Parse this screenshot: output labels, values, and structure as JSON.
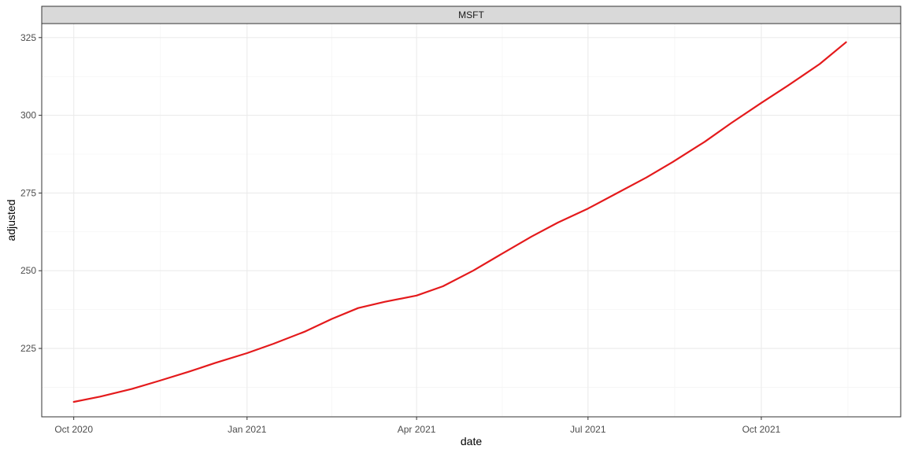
{
  "chart_data": {
    "type": "line",
    "facet_label": "MSFT",
    "xlabel": "date",
    "ylabel": "adjusted",
    "x_ticks": [
      "2020-10-01",
      "2021-01-01",
      "2021-04-01",
      "2021-07-01",
      "2021-10-01"
    ],
    "x_tick_labels": [
      "Oct 2020",
      "Jan 2021",
      "Apr 2021",
      "Jul 2021",
      "Oct 2021"
    ],
    "xlim": [
      "2020-09-14",
      "2021-12-14"
    ],
    "y_ticks": [
      225,
      250,
      275,
      300,
      325
    ],
    "y_tick_labels": [
      "225",
      "250",
      "275",
      "300",
      "325"
    ],
    "ylim": [
      203.0,
      329.5
    ],
    "grid": true,
    "line_color": "#e41a1c",
    "series": [
      {
        "x": [
          "2020-10-01",
          "2020-10-15",
          "2020-11-01",
          "2020-11-15",
          "2020-12-01",
          "2020-12-15",
          "2021-01-01",
          "2021-01-15",
          "2021-02-01",
          "2021-02-15",
          "2021-03-01",
          "2021-03-15",
          "2021-04-01",
          "2021-04-15",
          "2021-05-01",
          "2021-05-15",
          "2021-06-01",
          "2021-06-15",
          "2021-07-01",
          "2021-07-15",
          "2021-08-01",
          "2021-08-15",
          "2021-09-01",
          "2021-09-15",
          "2021-10-01",
          "2021-10-15",
          "2021-11-01",
          "2021-11-15"
        ],
        "y": [
          207.8,
          209.5,
          212.0,
          214.5,
          217.5,
          220.3,
          223.5,
          226.5,
          230.5,
          234.5,
          238.0,
          240.0,
          242.0,
          245.0,
          250.0,
          255.0,
          261.0,
          265.5,
          270.0,
          274.5,
          280.0,
          285.0,
          291.5,
          297.5,
          304.0,
          309.5,
          316.5,
          323.5
        ]
      }
    ]
  }
}
